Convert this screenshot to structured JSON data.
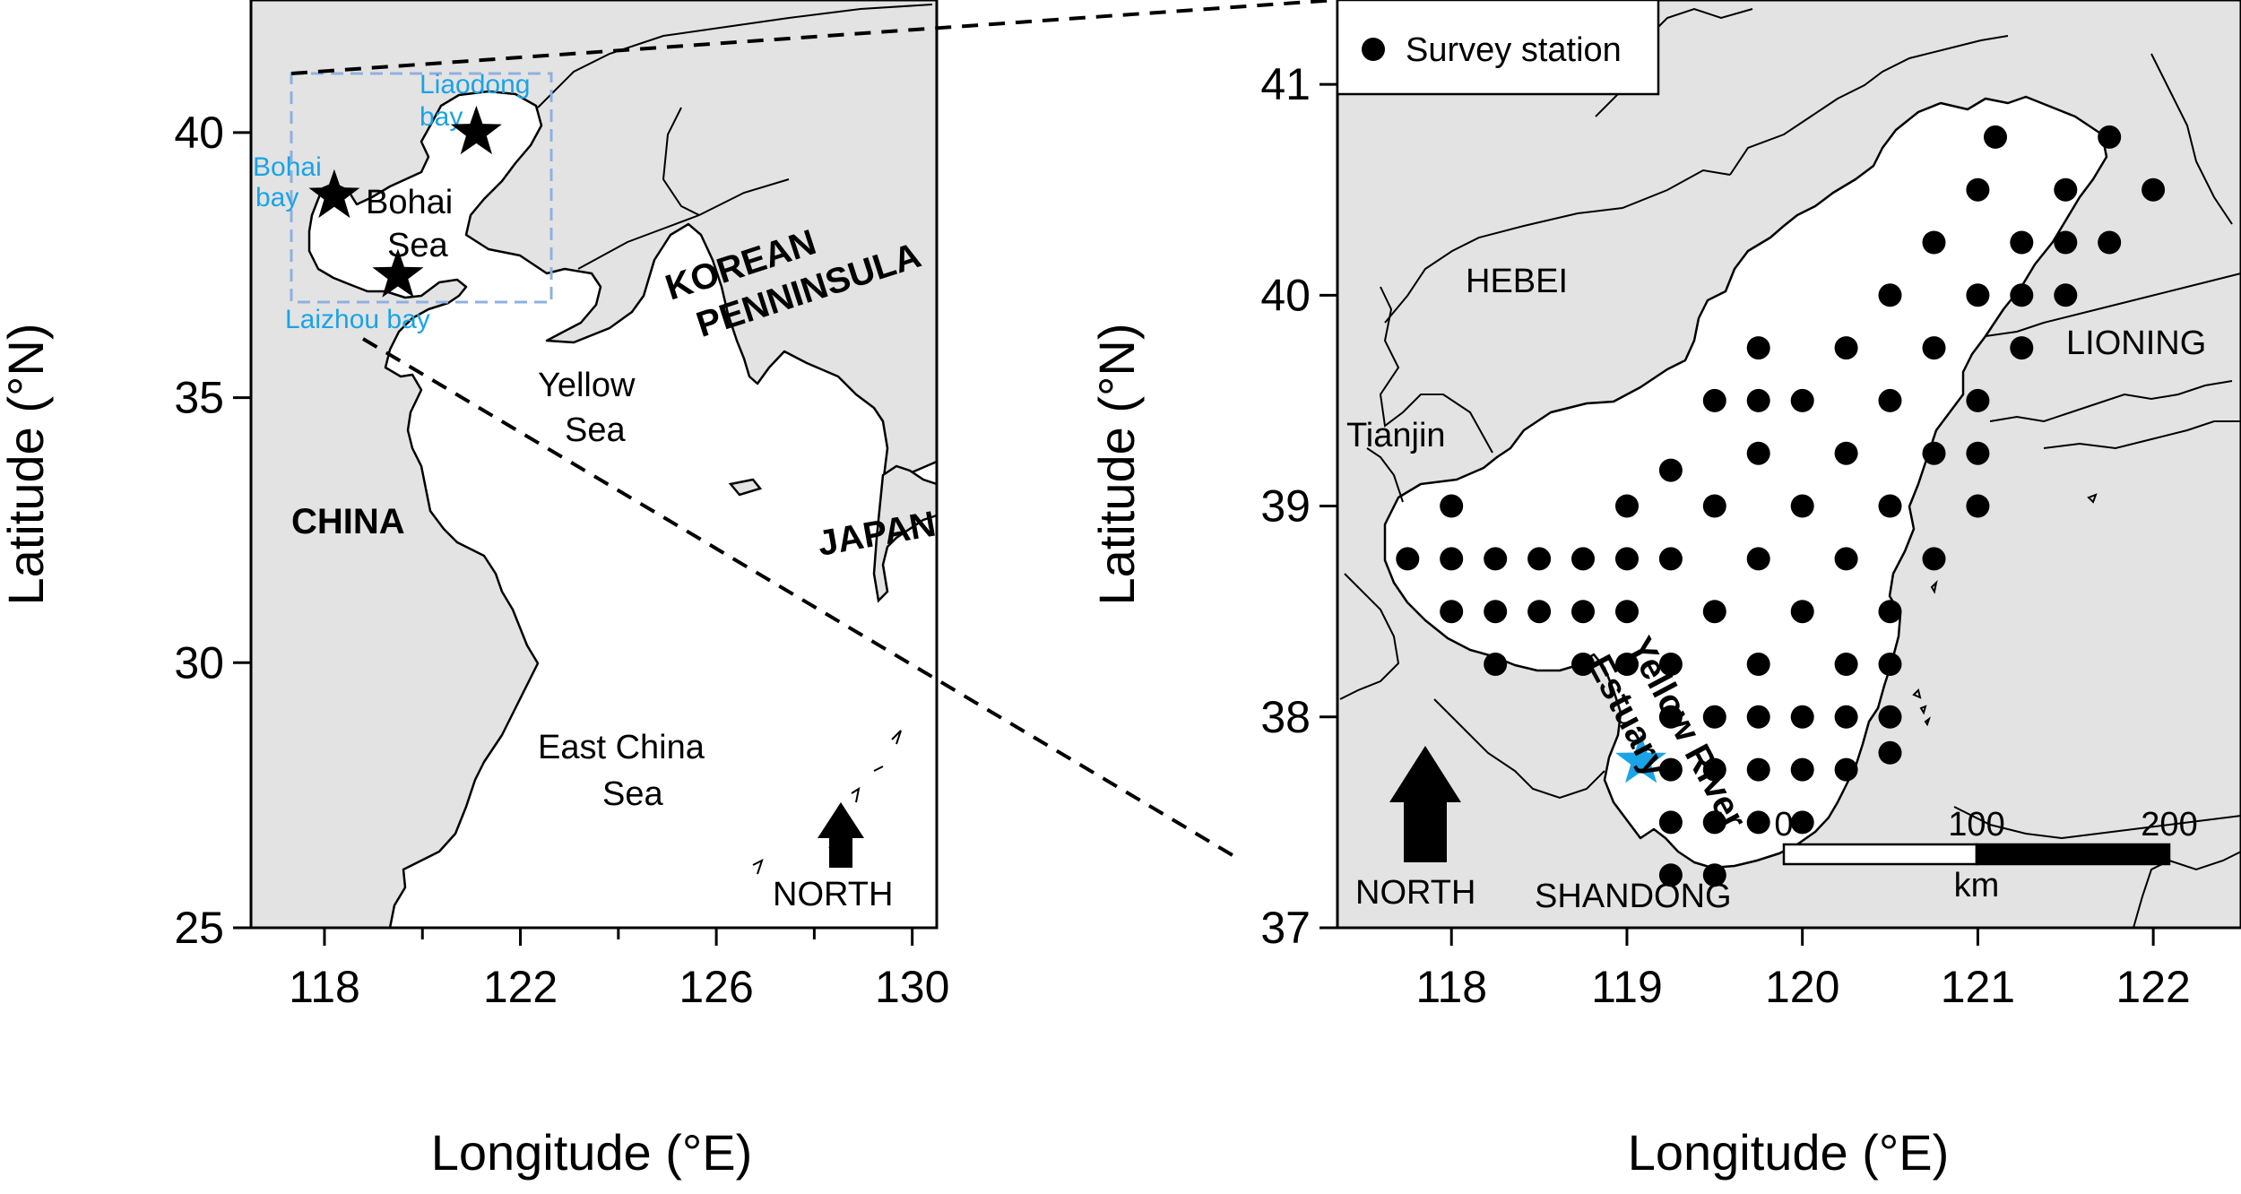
{
  "left_map": {
    "xlabel": "Longitude (°E)",
    "ylabel": "Latitude (°N)",
    "x_ticks": [
      "118",
      "122",
      "126",
      "130"
    ],
    "y_ticks": [
      "25",
      "30",
      "35",
      "40"
    ],
    "xlim": [
      116.5,
      130.5
    ],
    "ylim": [
      25,
      42.5
    ],
    "labels": {
      "liaodong": [
        "Liaodong",
        "bay"
      ],
      "bohai_bay": [
        "Bohai",
        "bay"
      ],
      "bohai_sea": [
        "Bohai",
        "Sea"
      ],
      "laizhou": "Laizhou bay",
      "yellow_sea": [
        "Yellow",
        "Sea"
      ],
      "korea": [
        "KOREAN",
        "PENNINSULA"
      ],
      "china": "CHINA",
      "japan": "JAPAN",
      "ecs": [
        "East China",
        "Sea"
      ],
      "north": "NORTH"
    },
    "stars": [
      {
        "name": "Liaodong bay",
        "lon": 121.1,
        "lat": 40.0
      },
      {
        "name": "Bohai bay",
        "lon": 118.2,
        "lat": 38.8
      },
      {
        "name": "Laizhou bay",
        "lon": 119.5,
        "lat": 37.3
      }
    ]
  },
  "right_map": {
    "xlabel": "Longitude (°E)",
    "ylabel": "Latitude (°N)",
    "x_ticks": [
      "118",
      "119",
      "120",
      "121",
      "122"
    ],
    "y_ticks": [
      "37",
      "38",
      "39",
      "40",
      "41"
    ],
    "xlim": [
      117.35,
      122.5
    ],
    "ylim": [
      37,
      41.4
    ],
    "legend": "Survey station",
    "labels": {
      "hebei": "HEBEI",
      "lioning": "LIONING",
      "tianjin": "Tianjin",
      "shandong": "SHANDONG",
      "yellow_river": "Yellow River",
      "estuary": "Estuary",
      "north": "NORTH"
    },
    "scale_bar": {
      "ticks": [
        "0",
        "100",
        "200"
      ],
      "unit": "km"
    },
    "estuary_star": {
      "lon": 119.08,
      "lat": 37.79
    },
    "colors": {
      "land": "#e3e3e3",
      "sea": "#ffffff",
      "star": "#1aa3e6",
      "station": "#000000"
    }
  },
  "chart_data": {
    "type": "scatter",
    "series": [
      {
        "name": "Survey station",
        "points": [
          [
            121.1,
            40.75
          ],
          [
            121.75,
            40.75
          ],
          [
            121,
            40.5
          ],
          [
            121.5,
            40.5
          ],
          [
            122,
            40.5
          ],
          [
            120.75,
            40.25
          ],
          [
            121.25,
            40.25
          ],
          [
            121.5,
            40.25
          ],
          [
            121.75,
            40.25
          ],
          [
            120.5,
            40
          ],
          [
            121,
            40
          ],
          [
            121.25,
            40
          ],
          [
            121.5,
            40
          ],
          [
            119.75,
            39.75
          ],
          [
            120.25,
            39.75
          ],
          [
            120.75,
            39.75
          ],
          [
            121.25,
            39.75
          ],
          [
            119.5,
            39.5
          ],
          [
            119.75,
            39.5
          ],
          [
            120,
            39.5
          ],
          [
            120.5,
            39.5
          ],
          [
            121,
            39.5
          ],
          [
            119.75,
            39.25
          ],
          [
            120.25,
            39.25
          ],
          [
            120.75,
            39.25
          ],
          [
            121,
            39.25
          ],
          [
            119.25,
            39.17
          ],
          [
            118,
            39
          ],
          [
            119,
            39
          ],
          [
            119.5,
            39
          ],
          [
            120,
            39
          ],
          [
            120.5,
            39
          ],
          [
            121,
            39
          ],
          [
            117.75,
            38.75
          ],
          [
            118,
            38.75
          ],
          [
            118.25,
            38.75
          ],
          [
            118.5,
            38.75
          ],
          [
            118.75,
            38.75
          ],
          [
            119,
            38.75
          ],
          [
            119.25,
            38.75
          ],
          [
            119.75,
            38.75
          ],
          [
            120.25,
            38.75
          ],
          [
            120.75,
            38.75
          ],
          [
            118,
            38.5
          ],
          [
            118.25,
            38.5
          ],
          [
            118.5,
            38.5
          ],
          [
            118.75,
            38.5
          ],
          [
            119,
            38.5
          ],
          [
            119.5,
            38.5
          ],
          [
            120,
            38.5
          ],
          [
            120.5,
            38.5
          ],
          [
            118.25,
            38.25
          ],
          [
            118.75,
            38.25
          ],
          [
            119,
            38.25
          ],
          [
            119.25,
            38.25
          ],
          [
            119.75,
            38.25
          ],
          [
            120.25,
            38.25
          ],
          [
            120.5,
            38.25
          ],
          [
            119.25,
            38
          ],
          [
            119.5,
            38
          ],
          [
            119.75,
            38
          ],
          [
            120,
            38
          ],
          [
            120.25,
            38
          ],
          [
            120.5,
            38
          ],
          [
            119.25,
            37.75
          ],
          [
            119.5,
            37.75
          ],
          [
            119.75,
            37.75
          ],
          [
            120,
            37.75
          ],
          [
            120.25,
            37.75
          ],
          [
            120.5,
            37.83
          ],
          [
            119.25,
            37.5
          ],
          [
            119.5,
            37.5
          ],
          [
            119.75,
            37.5
          ],
          [
            120,
            37.5
          ],
          [
            119.25,
            37.25
          ],
          [
            119.5,
            37.25
          ]
        ]
      }
    ]
  }
}
